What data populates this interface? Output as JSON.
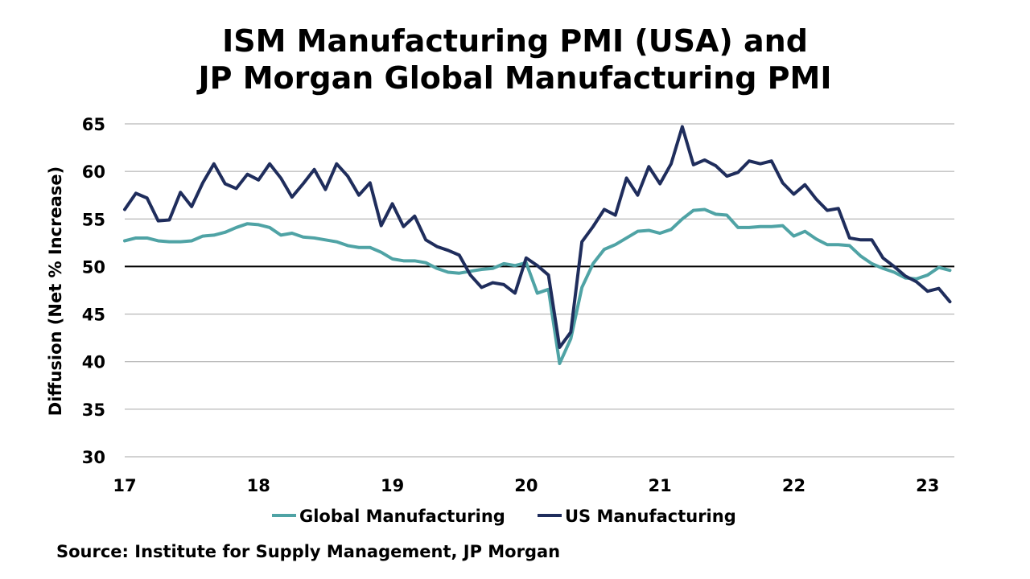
{
  "title_line1": "ISM Manufacturing PMI (USA) and",
  "title_line2": "JP Morgan Global Manufacturing PMI",
  "source": "Source: Institute for Supply Management, JP Morgan",
  "chart_data": {
    "type": "line",
    "ylabel": "Diffusion (Net % Increase)",
    "ylim": [
      30,
      65
    ],
    "yticks": [
      30,
      35,
      40,
      45,
      50,
      55,
      60,
      65
    ],
    "xlim": [
      17,
      23.2
    ],
    "xticks": [
      17,
      18,
      19,
      20,
      21,
      22,
      23
    ],
    "xtick_labels": [
      "17",
      "18",
      "19",
      "20",
      "21",
      "22",
      "23"
    ],
    "reference_line": 50,
    "grid": "horizontal",
    "legend_position": "bottom",
    "colors": {
      "global": "#4fa3a5",
      "us": "#1f2d5c",
      "reference": "#000000",
      "grid": "#a6a6a6"
    },
    "x_start": "Jan 2017",
    "x_step": "1 month",
    "series": [
      {
        "name": "Global Manufacturing",
        "key": "global",
        "values": [
          52.7,
          53.0,
          53.0,
          52.7,
          52.6,
          52.6,
          52.7,
          53.2,
          53.3,
          53.6,
          54.1,
          54.5,
          54.4,
          54.1,
          53.3,
          53.5,
          53.1,
          53.0,
          52.8,
          52.6,
          52.2,
          52.0,
          52.0,
          51.5,
          50.8,
          50.6,
          50.6,
          50.4,
          49.8,
          49.4,
          49.3,
          49.5,
          49.7,
          49.8,
          50.3,
          50.1,
          50.4,
          47.2,
          47.6,
          39.8,
          42.4,
          47.8,
          50.3,
          51.8,
          52.3,
          53.0,
          53.7,
          53.8,
          53.5,
          53.9,
          55.0,
          55.9,
          56.0,
          55.5,
          55.4,
          54.1,
          54.1,
          54.2,
          54.2,
          54.3,
          53.2,
          53.7,
          52.9,
          52.3,
          52.3,
          52.2,
          51.1,
          50.3,
          49.8,
          49.4,
          48.8,
          48.7,
          49.1,
          49.9,
          49.6
        ]
      },
      {
        "name": "US Manufacturing",
        "key": "us",
        "values": [
          56.0,
          57.7,
          57.2,
          54.8,
          54.9,
          57.8,
          56.3,
          58.8,
          60.8,
          58.7,
          58.2,
          59.7,
          59.1,
          60.8,
          59.3,
          57.3,
          58.7,
          60.2,
          58.1,
          60.8,
          59.5,
          57.5,
          58.8,
          54.3,
          56.6,
          54.2,
          55.3,
          52.8,
          52.1,
          51.7,
          51.2,
          49.1,
          47.8,
          48.3,
          48.1,
          47.2,
          50.9,
          50.1,
          49.1,
          41.5,
          43.1,
          52.6,
          54.2,
          56.0,
          55.4,
          59.3,
          57.5,
          60.5,
          58.7,
          60.8,
          64.7,
          60.7,
          61.2,
          60.6,
          59.5,
          59.9,
          61.1,
          60.8,
          61.1,
          58.8,
          57.6,
          58.6,
          57.1,
          55.9,
          56.1,
          53.0,
          52.8,
          52.8,
          50.9,
          50.0,
          49.0,
          48.4,
          47.4,
          47.7,
          46.3
        ]
      }
    ]
  }
}
